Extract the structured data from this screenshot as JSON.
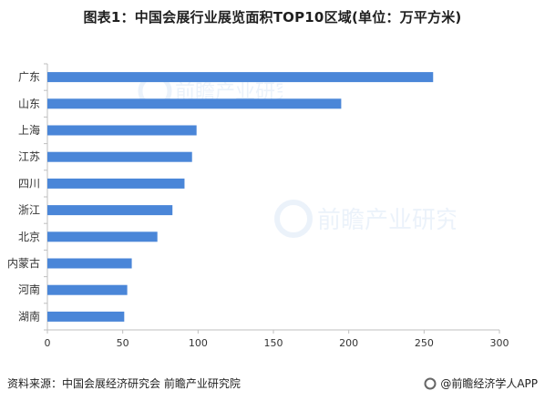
{
  "title": "图表1：中国会展行业展览面积TOP10区域(单位：万平方米)",
  "source": "资料来源：中国会展经济研究会 前瞻产业研究院",
  "brand": "@前瞻经济学人APP",
  "watermark": "前瞻产业研究院",
  "colors": {
    "bar": "#4a86d8",
    "axis": "#bfbfbf",
    "text": "#333333"
  },
  "chart_data": {
    "type": "bar",
    "orientation": "horizontal",
    "categories": [
      "广东",
      "山东",
      "上海",
      "江苏",
      "四川",
      "浙江",
      "北京",
      "内蒙古",
      "河南",
      "湖南"
    ],
    "values": [
      256,
      195,
      99,
      96,
      91,
      83,
      73,
      56,
      53,
      51
    ],
    "xlim": [
      0,
      300
    ],
    "xticks": [
      0,
      50,
      100,
      150,
      200,
      250,
      300
    ],
    "grid": false
  }
}
